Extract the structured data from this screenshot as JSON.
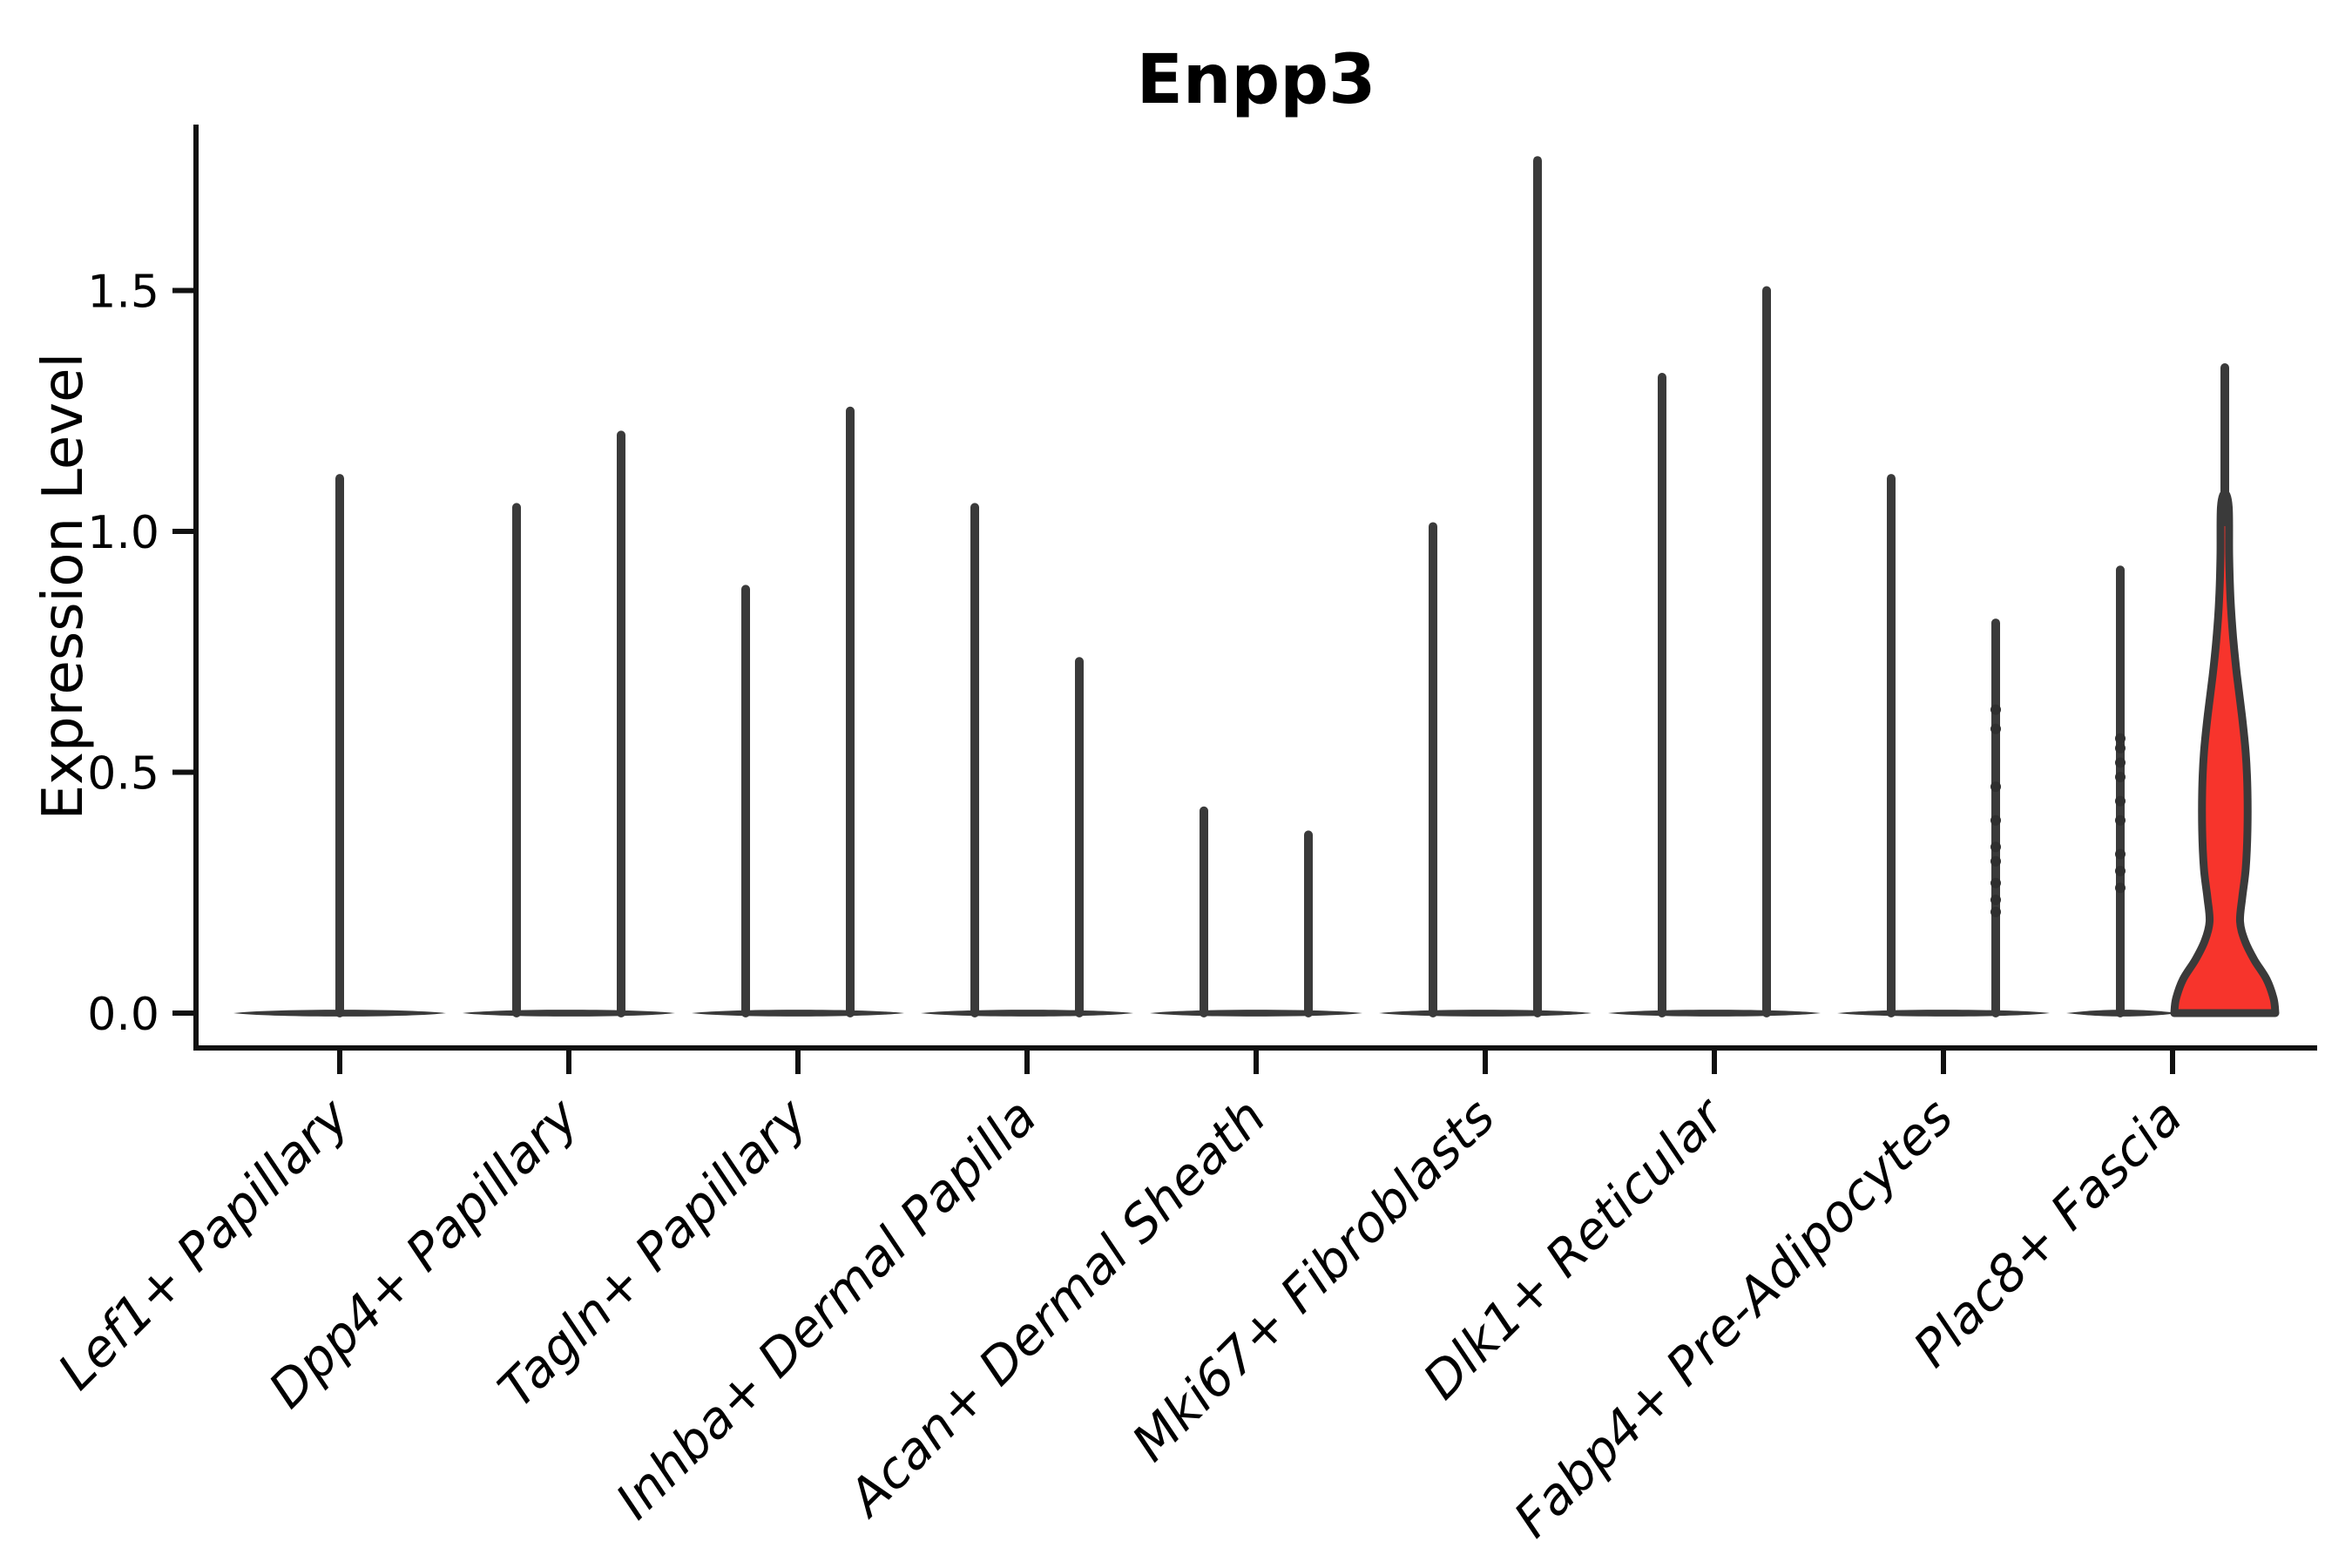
{
  "title": "Enpp3",
  "chart_data": {
    "type": "violin",
    "title": "Enpp3",
    "xlabel": "",
    "ylabel": "Expression Level",
    "ylim": [
      0,
      1.85
    ],
    "yticks": [
      0,
      0.5,
      1.0,
      1.5
    ],
    "ytick_labels": [
      "0.0",
      "0.5",
      "1.0",
      "1.5"
    ],
    "grid": false,
    "legend": "none",
    "categories": [
      "Lef1+ Papillary",
      "Dpp4+ Papillary",
      "Tagln+ Papillary",
      "Inhba+ Dermal Papilla",
      "Acan+ Dermal Sheath",
      "Mki67+ Fibroblasts",
      "Dlk1+ Reticular",
      "Fabp4+ Pre-Adipocytes",
      "Plac8+ Fascia"
    ],
    "violins": [
      {
        "category": "Lef1+ Papillary",
        "groups": [
          {
            "pos": "center",
            "shape": "spike",
            "max": 1.11
          }
        ]
      },
      {
        "category": "Dpp4+ Papillary",
        "groups": [
          {
            "pos": "left",
            "shape": "spike",
            "max": 1.05
          },
          {
            "pos": "right",
            "shape": "spike",
            "max": 1.2
          }
        ]
      },
      {
        "category": "Tagln+ Papillary",
        "groups": [
          {
            "pos": "left",
            "shape": "spike",
            "max": 0.88
          },
          {
            "pos": "right",
            "shape": "spike",
            "max": 1.25
          }
        ]
      },
      {
        "category": "Inhba+ Dermal Papilla",
        "groups": [
          {
            "pos": "left",
            "shape": "spike",
            "max": 1.05
          },
          {
            "pos": "right",
            "shape": "spike",
            "max": 0.73
          }
        ]
      },
      {
        "category": "Acan+ Dermal Sheath",
        "groups": [
          {
            "pos": "left",
            "shape": "spike",
            "max": 0.42
          },
          {
            "pos": "right",
            "shape": "spike",
            "max": 0.37
          }
        ]
      },
      {
        "category": "Mki67+ Fibroblasts",
        "groups": [
          {
            "pos": "left",
            "shape": "spike",
            "max": 1.01
          },
          {
            "pos": "right",
            "shape": "spike",
            "max": 1.77
          }
        ]
      },
      {
        "category": "Dlk1+ Reticular",
        "groups": [
          {
            "pos": "left",
            "shape": "spike",
            "max": 1.32
          },
          {
            "pos": "right",
            "shape": "spike",
            "max": 1.5
          }
        ]
      },
      {
        "category": "Fabp4+ Pre-Adipocytes",
        "groups": [
          {
            "pos": "left",
            "shape": "spike",
            "max": 1.11
          },
          {
            "pos": "right",
            "shape": "spike",
            "max": 0.81,
            "dots": [
              0.63,
              0.59,
              0.47,
              0.4,
              0.345,
              0.315,
              0.27,
              0.235,
              0.21
            ]
          }
        ]
      },
      {
        "category": "Plac8+ Fascia",
        "groups": [
          {
            "pos": "left",
            "shape": "spike",
            "max": 0.92,
            "dots": [
              0.57,
              0.55,
              0.52,
              0.49,
              0.44,
              0.4,
              0.33,
              0.295,
              0.26
            ]
          },
          {
            "pos": "right",
            "shape": "density",
            "max": 1.34,
            "fill": "#f7342c",
            "profile": [
              [
                0.0,
                58
              ],
              [
                0.03,
                56
              ],
              [
                0.07,
                48
              ],
              [
                0.11,
                34
              ],
              [
                0.15,
                23
              ],
              [
                0.19,
                17.5
              ],
              [
                0.24,
                20
              ],
              [
                0.3,
                24
              ],
              [
                0.38,
                26
              ],
              [
                0.46,
                26
              ],
              [
                0.54,
                24
              ],
              [
                0.62,
                19.5
              ],
              [
                0.7,
                14
              ],
              [
                0.78,
                9.5
              ],
              [
                0.86,
                6.5
              ],
              [
                0.95,
                5.0
              ],
              [
                1.05,
                4.5
              ]
            ]
          }
        ]
      }
    ],
    "colors": {
      "violin_line": "#3a3a3a",
      "violin_base_fill": "#3a3a3a",
      "highlight_fill": "#f7342c",
      "dot": "#2f2f2f",
      "axis": "#111111",
      "text": "#000000"
    }
  }
}
